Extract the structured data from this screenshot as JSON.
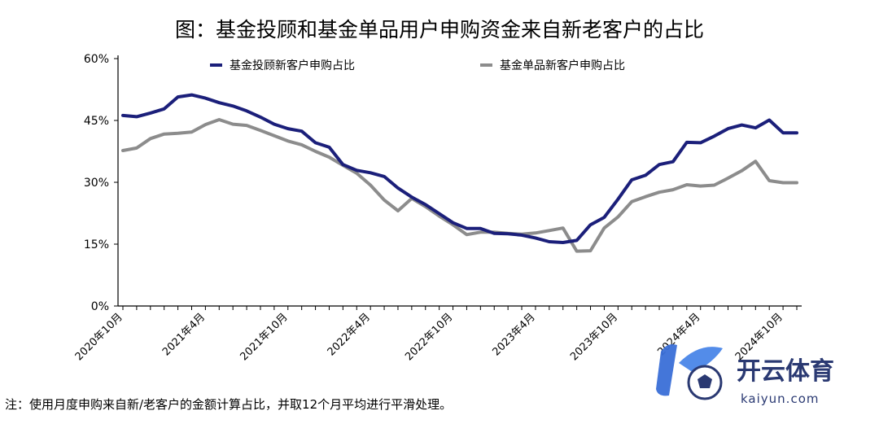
{
  "chart_data": {
    "type": "line",
    "title": "图：基金投顾和基金单品用户申购资金来自新老客户的占比",
    "xlabel": "",
    "ylabel": "",
    "ylim": [
      0,
      60
    ],
    "yticks": [
      "0%",
      "15%",
      "30%",
      "45%",
      "60%"
    ],
    "ytick_values": [
      0,
      15,
      30,
      45,
      60
    ],
    "grid": false,
    "legend_position": "top",
    "xtick_labels": [
      "2020年10月",
      "2021年4月",
      "2021年10月",
      "2022年4月",
      "2022年10月",
      "2023年4月",
      "2023年10月",
      "2024年4月",
      "2024年10月"
    ],
    "x": [
      "2020-10",
      "2020-11",
      "2020-12",
      "2021-01",
      "2021-02",
      "2021-03",
      "2021-04",
      "2021-05",
      "2021-06",
      "2021-07",
      "2021-08",
      "2021-09",
      "2021-10",
      "2021-11",
      "2021-12",
      "2022-01",
      "2022-02",
      "2022-03",
      "2022-04",
      "2022-05",
      "2022-06",
      "2022-07",
      "2022-08",
      "2022-09",
      "2022-10",
      "2022-11",
      "2022-12",
      "2023-01",
      "2023-02",
      "2023-03",
      "2023-04",
      "2023-05",
      "2023-06",
      "2023-07",
      "2023-08",
      "2023-09",
      "2023-10",
      "2023-11",
      "2023-12",
      "2024-01",
      "2024-02",
      "2024-03",
      "2024-04",
      "2024-05",
      "2024-06",
      "2024-07",
      "2024-08",
      "2024-09",
      "2024-10",
      "2024-11"
    ],
    "series": [
      {
        "name": "基金投顾新客户申购占比",
        "color": "#1b1f7a",
        "values": [
          46.2,
          45.9,
          46.8,
          47.8,
          50.7,
          51.2,
          50.4,
          49.3,
          48.5,
          47.3,
          45.8,
          44.1,
          43.0,
          42.4,
          39.6,
          38.5,
          34.3,
          32.9,
          32.3,
          31.4,
          28.6,
          26.4,
          24.6,
          22.4,
          20.2,
          18.8,
          18.8,
          17.6,
          17.5,
          17.2,
          16.5,
          15.6,
          15.4,
          15.9,
          19.7,
          21.5,
          25.9,
          30.6,
          31.7,
          34.3,
          35.0,
          39.7,
          39.6,
          41.2,
          43.0,
          43.9,
          43.2,
          45.1,
          42.0,
          42.0
        ]
      },
      {
        "name": "基金单品新客户申购占比",
        "color": "#8c8c8c",
        "values": [
          37.7,
          38.3,
          40.6,
          41.7,
          41.9,
          42.2,
          44.0,
          45.2,
          44.1,
          43.8,
          42.6,
          41.3,
          40.0,
          39.1,
          37.5,
          36.1,
          34.1,
          32.2,
          29.3,
          25.7,
          23.1,
          26.1,
          24.1,
          21.8,
          19.7,
          17.3,
          17.9,
          17.9,
          17.6,
          17.4,
          17.7,
          18.3,
          18.9,
          13.3,
          13.4,
          18.9,
          21.6,
          25.3,
          26.5,
          27.6,
          28.2,
          29.4,
          29.1,
          29.3,
          31.0,
          32.8,
          35.1,
          30.4,
          29.9,
          29.9
        ]
      }
    ]
  },
  "note": "注：使用月度申购来自新/老客户的金额计算占比，并取12个月平均进行平滑处理。",
  "watermark": {
    "name": "开云体育",
    "sub": "kaiyun.com",
    "color": "#1f2f6b"
  }
}
